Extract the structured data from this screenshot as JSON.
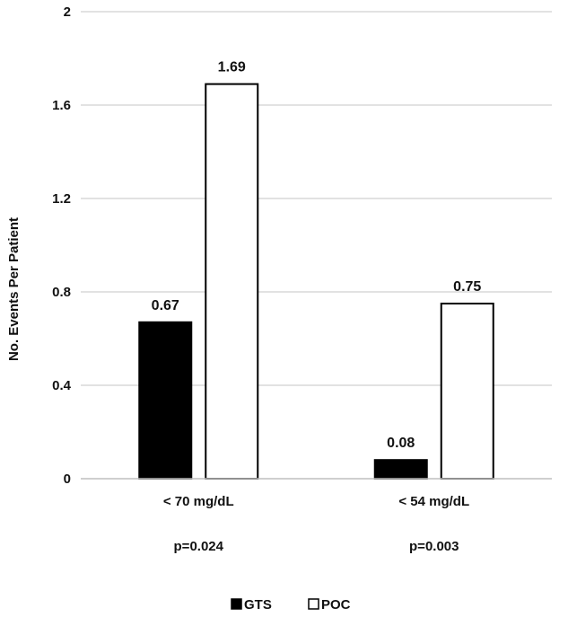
{
  "chart_data": {
    "type": "bar",
    "categories": [
      "< 70 mg/dL",
      "< 54 mg/dL"
    ],
    "category_notes": [
      "p=0.024",
      "p=0.003"
    ],
    "series": [
      {
        "name": "GTS",
        "values": [
          0.67,
          0.08
        ],
        "color": "#000000",
        "labels": [
          "0.67",
          "0.08"
        ]
      },
      {
        "name": "POC",
        "values": [
          1.69,
          0.75
        ],
        "color": "#ffffff",
        "labels": [
          "1.69",
          "0.75"
        ]
      }
    ],
    "title": "",
    "xlabel": "",
    "ylabel": "No. Events Per Patient",
    "ylim": [
      0,
      2
    ],
    "yticks": [
      "0",
      "0.4",
      "0.8",
      "1.2",
      "1.6",
      "2"
    ],
    "grid": true,
    "legend_position": "bottom"
  }
}
